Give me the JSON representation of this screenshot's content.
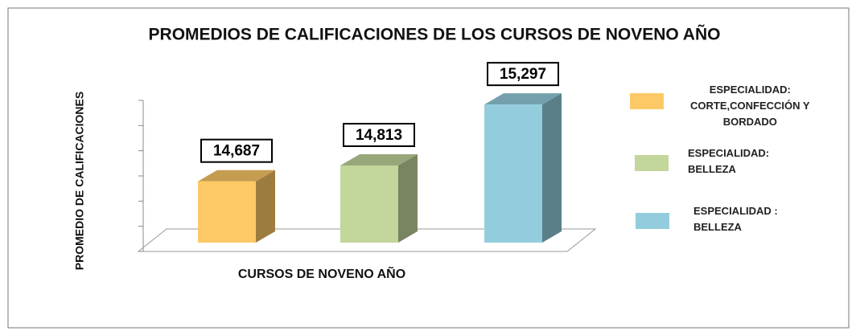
{
  "chart_data": {
    "type": "bar",
    "title": "PROMEDIOS DE CALIFICACIONES DE LOS CURSOS DE NOVENO AÑO",
    "y_label": "PROMEDIO DE CALIFICACIONES",
    "x_label": "CURSOS DE NOVENO AÑO",
    "ylim": [
      14.2,
      15.4
    ],
    "yticks": [
      14.2,
      14.4,
      14.6,
      14.8,
      15.0,
      15.2,
      15.4
    ],
    "series": [
      {
        "name": "ESPECIALIDAD:\nCORTE,CONFECCIÓN Y\nBORDADO",
        "color": "#fdc966",
        "values": [
          14.687
        ],
        "value_labels": [
          "14,687"
        ]
      },
      {
        "name": "ESPECIALIDAD:\nBELLEZA",
        "color": "#c3d69b",
        "values": [
          14.813
        ],
        "value_labels": [
          "14,813"
        ]
      },
      {
        "name": "ESPECIALIDAD :\nBELLEZA",
        "color": "#93cddd",
        "values": [
          15.297
        ],
        "value_labels": [
          "15,297"
        ]
      }
    ]
  }
}
